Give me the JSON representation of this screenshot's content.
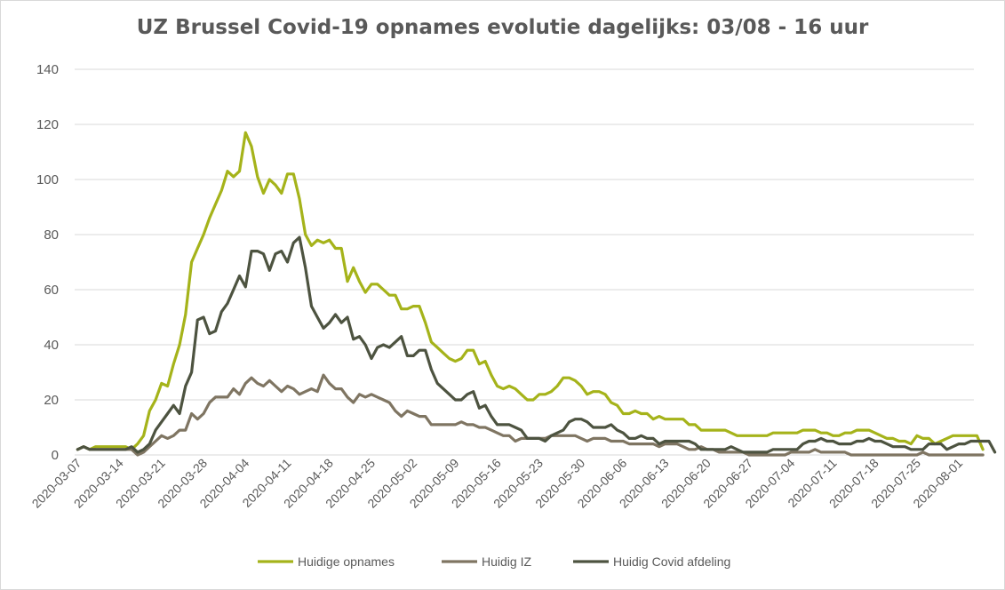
{
  "chart_data": {
    "type": "line",
    "title": "UZ Brussel Covid-19 opnames evolutie dagelijks: 03/08 - 16 uur",
    "xlabel": "",
    "ylabel": "",
    "ylim": [
      0,
      140
    ],
    "yticks": [
      0,
      20,
      40,
      60,
      80,
      100,
      120,
      140
    ],
    "x_start": "2020-03-07",
    "x_end": "2020-08-03",
    "xtick_labels": [
      "2020-03-07",
      "2020-03-14",
      "2020-03-21",
      "2020-03-28",
      "2020-04-04",
      "2020-04-11",
      "2020-04-18",
      "2020-04-25",
      "2020-05-02",
      "2020-05-09",
      "2020-05-16",
      "2020-05-23",
      "2020-05-30",
      "2020-06-06",
      "2020-06-13",
      "2020-06-20",
      "2020-06-27",
      "2020-07-04",
      "2020-07-11",
      "2020-07-18",
      "2020-07-25",
      "2020-08-01"
    ],
    "grid": true,
    "legend": "bottom",
    "series": [
      {
        "name": "Huidige opnames",
        "color": "#a5b31a",
        "values": [
          2,
          3,
          2,
          3,
          3,
          3,
          3,
          3,
          3,
          2,
          4,
          7,
          16,
          20,
          26,
          25,
          33,
          40,
          51,
          70,
          75,
          80,
          86,
          91,
          96,
          103,
          101,
          103,
          117,
          112,
          101,
          95,
          100,
          98,
          95,
          102,
          102,
          93,
          80,
          76,
          78,
          77,
          78,
          75,
          75,
          63,
          68,
          63,
          59,
          62,
          62,
          60,
          58,
          58,
          53,
          53,
          54,
          54,
          48,
          41,
          39,
          37,
          35,
          34,
          35,
          38,
          38,
          33,
          34,
          29,
          25,
          24,
          25,
          24,
          22,
          20,
          20,
          22,
          22,
          23,
          25,
          28,
          28,
          27,
          25,
          22,
          23,
          23,
          22,
          19,
          18,
          15,
          15,
          16,
          15,
          15,
          13,
          14,
          13,
          13,
          13,
          13,
          11,
          11,
          9,
          9,
          9,
          9,
          9,
          8,
          7,
          7,
          7,
          7,
          7,
          7,
          8,
          8,
          8,
          8,
          8,
          9,
          9,
          9,
          8,
          8,
          7,
          7,
          8,
          8,
          9,
          9,
          9,
          8,
          7,
          6,
          6,
          5,
          5,
          4,
          7,
          6,
          6,
          4,
          5,
          6,
          7,
          7,
          7,
          7,
          7,
          2
        ]
      },
      {
        "name": "Huidig IZ",
        "color": "#7f7562",
        "values": [
          2,
          3,
          2,
          2,
          2,
          2,
          2,
          2,
          2,
          2,
          0,
          1,
          3,
          5,
          7,
          6,
          7,
          9,
          9,
          15,
          13,
          15,
          19,
          21,
          21,
          21,
          24,
          22,
          26,
          28,
          26,
          25,
          27,
          25,
          23,
          25,
          24,
          22,
          23,
          24,
          23,
          29,
          26,
          24,
          24,
          21,
          19,
          22,
          21,
          22,
          21,
          20,
          19,
          16,
          14,
          16,
          15,
          14,
          14,
          11,
          11,
          11,
          11,
          11,
          12,
          11,
          11,
          10,
          10,
          9,
          8,
          7,
          7,
          5,
          6,
          6,
          6,
          6,
          6,
          7,
          7,
          7,
          7,
          7,
          6,
          5,
          6,
          6,
          6,
          5,
          5,
          5,
          4,
          4,
          4,
          4,
          4,
          3,
          4,
          4,
          4,
          3,
          2,
          2,
          3,
          2,
          2,
          1,
          1,
          1,
          1,
          1,
          0,
          0,
          0,
          0,
          0,
          0,
          0,
          1,
          1,
          1,
          1,
          2,
          1,
          1,
          1,
          1,
          1,
          0,
          0,
          0,
          0,
          0,
          0,
          0,
          0,
          0,
          0,
          0,
          0,
          1,
          0,
          0,
          0,
          0,
          0,
          0,
          0,
          0,
          0,
          0
        ]
      },
      {
        "name": "Huidig Covid afdeling",
        "color": "#4d5340",
        "values": [
          2,
          3,
          2,
          2,
          2,
          2,
          2,
          2,
          2,
          3,
          1,
          2,
          4,
          9,
          12,
          15,
          18,
          15,
          25,
          30,
          49,
          50,
          44,
          45,
          52,
          55,
          60,
          65,
          61,
          74,
          74,
          73,
          67,
          73,
          74,
          70,
          77,
          79,
          68,
          54,
          50,
          46,
          48,
          51,
          48,
          50,
          42,
          43,
          40,
          35,
          39,
          40,
          39,
          41,
          43,
          36,
          36,
          38,
          38,
          31,
          26,
          24,
          22,
          20,
          20,
          22,
          23,
          17,
          18,
          14,
          11,
          11,
          11,
          10,
          9,
          6,
          6,
          6,
          5,
          7,
          8,
          9,
          12,
          13,
          13,
          12,
          10,
          10,
          10,
          11,
          9,
          8,
          6,
          6,
          7,
          6,
          6,
          4,
          5,
          5,
          5,
          5,
          5,
          4,
          2,
          2,
          2,
          2,
          2,
          3,
          2,
          1,
          1,
          1,
          1,
          1,
          2,
          2,
          2,
          2,
          2,
          4,
          5,
          5,
          6,
          5,
          5,
          4,
          4,
          4,
          5,
          5,
          6,
          5,
          5,
          4,
          3,
          3,
          3,
          2,
          2,
          2,
          4,
          4,
          4,
          2,
          3,
          4,
          4,
          5,
          5,
          5,
          5,
          1
        ]
      }
    ]
  }
}
